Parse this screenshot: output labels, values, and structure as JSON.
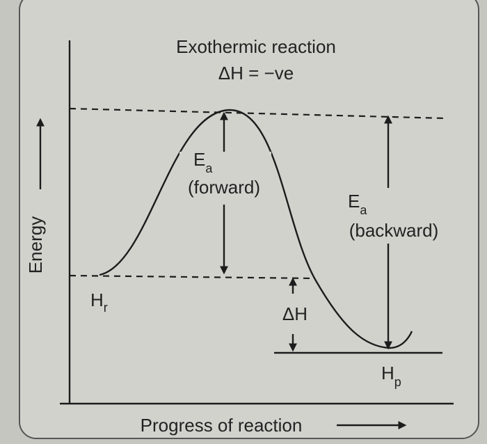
{
  "title": "Exothermic reaction",
  "subtitle": "ΔH =  −ve",
  "axes": {
    "y_label": "Energy",
    "x_label": "Progress of reaction"
  },
  "labels": {
    "ea_forward": {
      "symbol": "E",
      "subscript": "a",
      "note": "(forward)"
    },
    "ea_backward": {
      "symbol": "E",
      "subscript": "a",
      "note": "(backward)"
    },
    "h_reactant": {
      "symbol": "H",
      "subscript": "r"
    },
    "h_product": {
      "symbol": "H",
      "subscript": "p"
    },
    "delta_h": "ΔH"
  }
}
